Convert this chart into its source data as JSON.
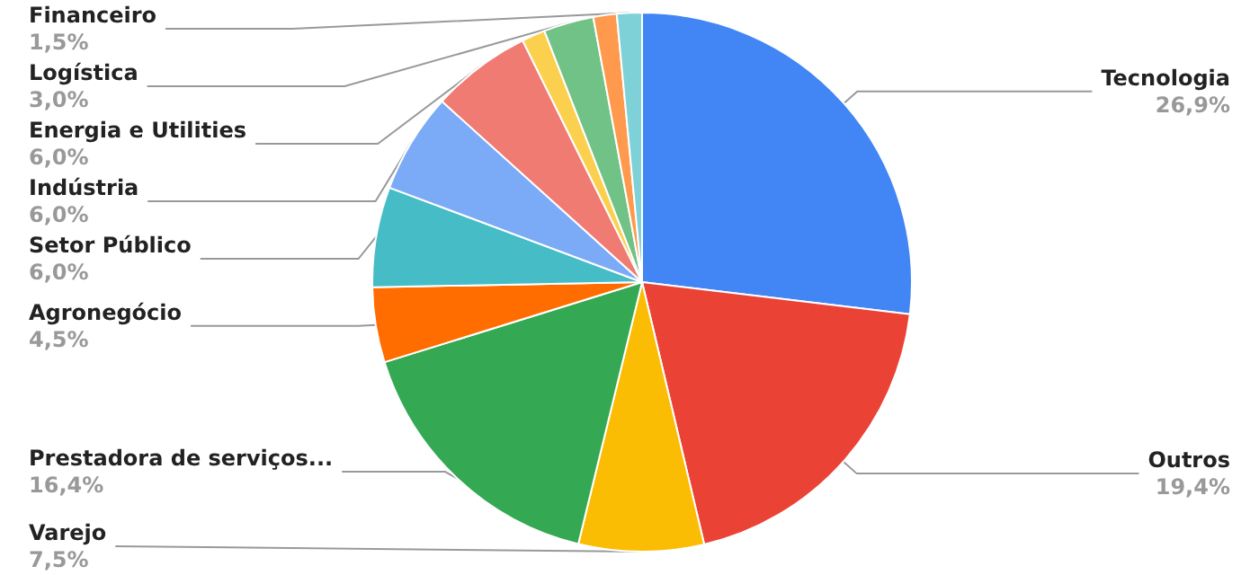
{
  "chart_data": {
    "type": "pie",
    "categories": [
      "Tecnologia",
      "Outros",
      "Varejo",
      "Prestadora de serviços...",
      "Agronegócio",
      "Setor Público",
      "Indústria",
      "Energia e Utilities",
      null,
      "Logística",
      null,
      "Financeiro"
    ],
    "values": [
      26.9,
      19.4,
      7.5,
      16.4,
      4.5,
      6.0,
      6.0,
      6.0,
      1.4,
      3.0,
      1.4,
      1.5
    ],
    "value_labels": [
      "26,9%",
      "19,4%",
      "7,5%",
      "16,4%",
      "4,5%",
      "6,0%",
      "6,0%",
      "6,0%",
      null,
      "3,0%",
      null,
      "1,5%"
    ],
    "colors": [
      "#4285f4",
      "#ea4335",
      "#fbbc04",
      "#34a853",
      "#ff6d01",
      "#46bdc6",
      "#7baaf7",
      "#f07b72",
      "#fcd04f",
      "#71c287",
      "#ff994d",
      "#7ed1d7"
    ],
    "legend": false
  }
}
